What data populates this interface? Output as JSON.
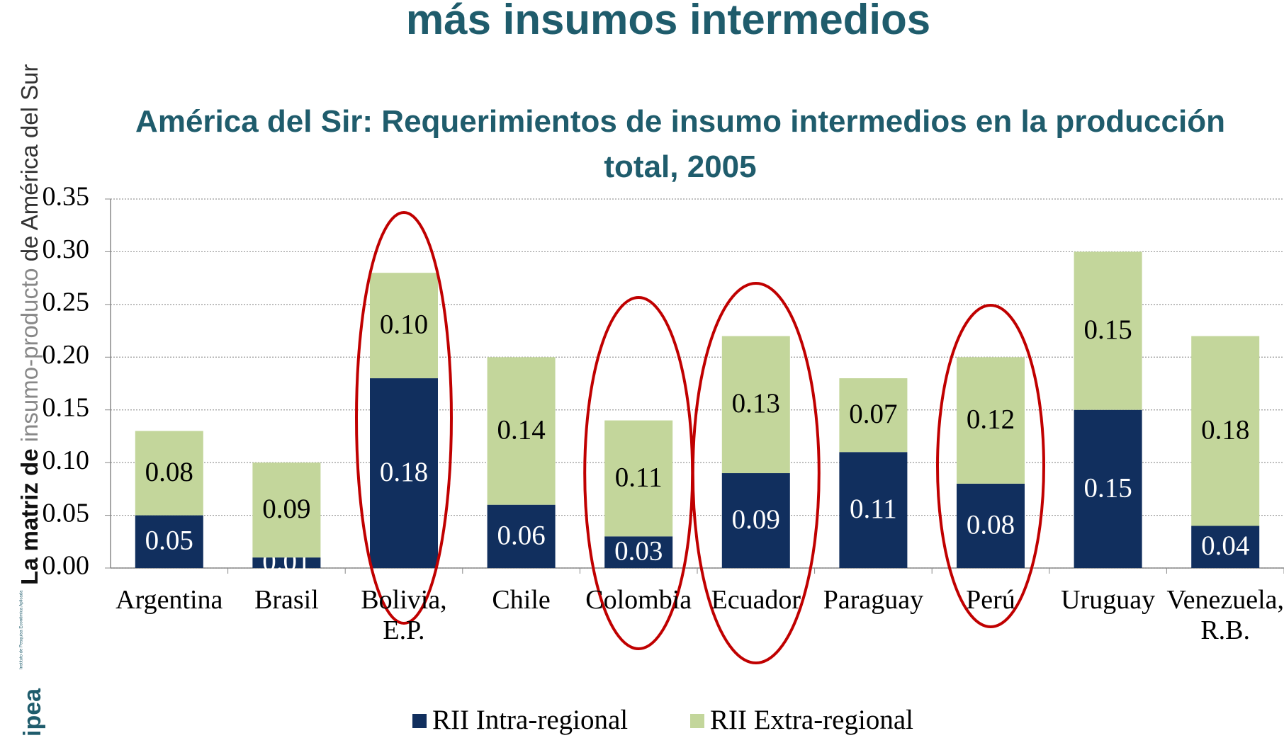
{
  "heading": "más insumos intermedios",
  "sidebar": {
    "bold": "La matriz de",
    "gray": "insumo-producto",
    "rest": "de América del Sur"
  },
  "logo": {
    "name": "ipea",
    "tagline": "Instituto de Pesquisa Econômica Aplicada"
  },
  "chart_data": {
    "type": "stacked_bar",
    "title": "América del Sir: Requerimientos de insumo intermedios en la producción total, 2005",
    "categories": [
      "Argentina",
      "Brasil",
      "Bolivia,\nE.P.",
      "Chile",
      "Colombia",
      "Ecuador",
      "Paraguay",
      "Perú",
      "Uruguay",
      "Venezuela,\nR.B."
    ],
    "series": [
      {
        "name": "RII Intra-regional",
        "color": "#112f5e",
        "label_color": "#ffffff",
        "values": [
          0.05,
          0.01,
          0.18,
          0.06,
          0.03,
          0.09,
          0.11,
          0.08,
          0.15,
          0.04
        ],
        "value_labels": [
          "0.05",
          "0.01",
          "0.18",
          "0.06",
          "0.03",
          "0.09",
          "0.11",
          "0.08",
          "0.15",
          "0.04"
        ]
      },
      {
        "name": "RII Extra-regional",
        "color": "#c3d69b",
        "label_color": "#000000",
        "values": [
          0.08,
          0.09,
          0.1,
          0.14,
          0.11,
          0.13,
          0.07,
          0.12,
          0.15,
          0.18
        ],
        "value_labels": [
          "0.08",
          "0.09",
          "0.10",
          "0.14",
          "0.11",
          "0.13",
          "0.07",
          "0.12",
          "0.15",
          "0.18"
        ]
      }
    ],
    "ylim": [
      0,
      0.35
    ],
    "yticks": [
      {
        "value": 0,
        "label": "0.00"
      },
      {
        "value": 0.05,
        "label": "0.05"
      },
      {
        "value": 0.1,
        "label": "0.10"
      },
      {
        "value": 0.15,
        "label": "0.15"
      },
      {
        "value": 0.2,
        "label": "0.20"
      },
      {
        "value": 0.25,
        "label": "0.25"
      },
      {
        "value": 0.3,
        "label": "0.30"
      },
      {
        "value": 0.35,
        "label": "0.35"
      }
    ],
    "grid": true,
    "legend": "bottom"
  }
}
